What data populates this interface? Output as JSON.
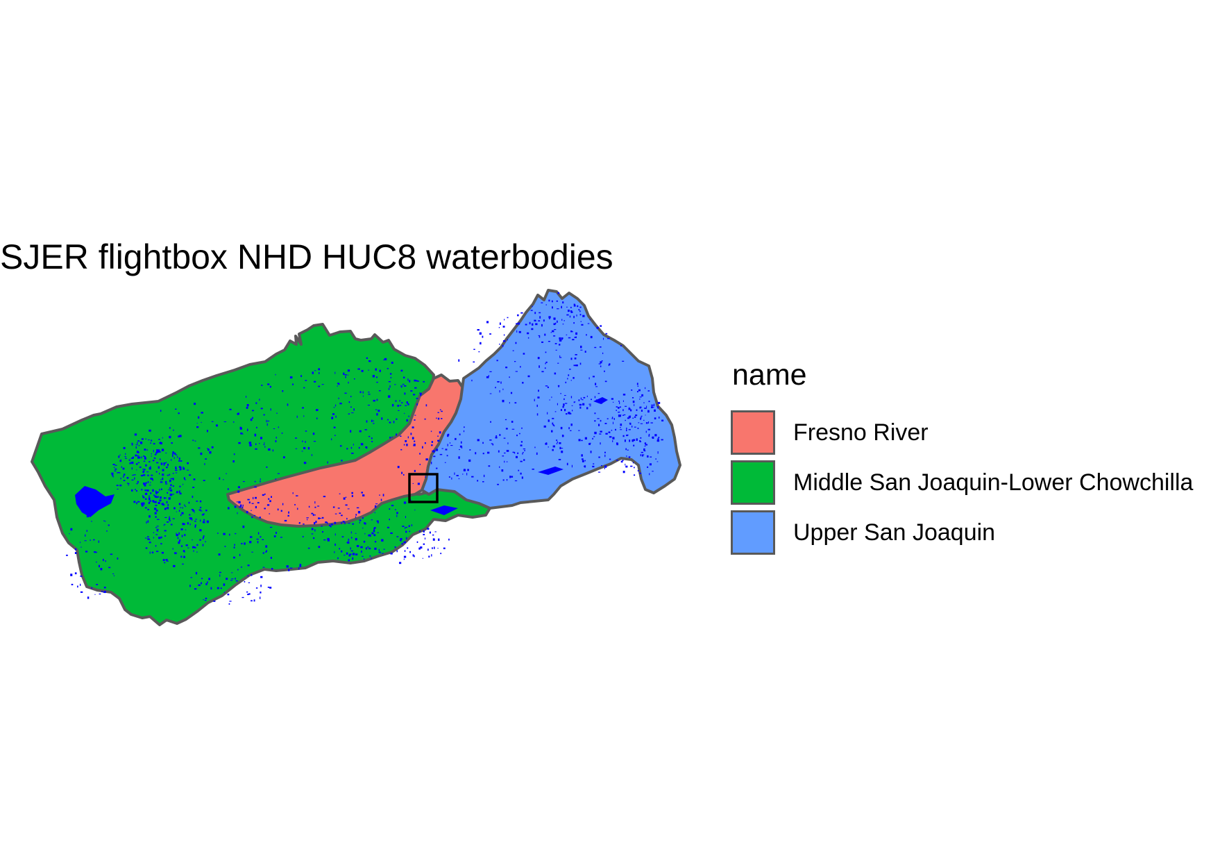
{
  "title": "SJER flightbox NHD HUC8 waterbodies",
  "legend": {
    "title": "name",
    "position": "right",
    "items": [
      {
        "label": "Fresno River",
        "color": "#F8766D"
      },
      {
        "label": "Middle San Joaquin-Lower Chowchilla",
        "color": "#00BA38"
      },
      {
        "label": "Upper San Joaquin",
        "color": "#619CFF"
      }
    ]
  },
  "map": {
    "regions": [
      {
        "name": "Middle San Joaquin-Lower Chowchilla",
        "color": "#00BA38"
      },
      {
        "name": "Fresno River",
        "color": "#F8766D"
      },
      {
        "name": "Upper San Joaquin",
        "color": "#619CFF"
      }
    ],
    "boundary_color": "#595959",
    "waterbody_color": "#0000FF",
    "flightbox_color": "#000000"
  }
}
